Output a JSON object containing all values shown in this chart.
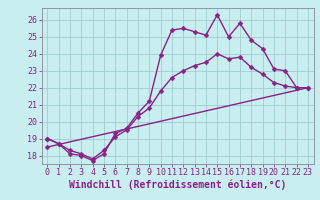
{
  "xlabel": "Windchill (Refroidissement éolien,°C)",
  "background_color": "#c8eef0",
  "grid_color": "#a0ccd0",
  "line_color": "#882288",
  "xlim": [
    -0.5,
    23.5
  ],
  "ylim": [
    17.5,
    26.7
  ],
  "xticks": [
    0,
    1,
    2,
    3,
    4,
    5,
    6,
    7,
    8,
    9,
    10,
    11,
    12,
    13,
    14,
    15,
    16,
    17,
    18,
    19,
    20,
    21,
    22,
    23
  ],
  "yticks": [
    18,
    19,
    20,
    21,
    22,
    23,
    24,
    25,
    26
  ],
  "line1_x": [
    0,
    1,
    2,
    3,
    4,
    5,
    6,
    7,
    8,
    9,
    10,
    11,
    12,
    13,
    14,
    15,
    16,
    17,
    18,
    19,
    20,
    21,
    22
  ],
  "line1_y": [
    19.0,
    18.7,
    18.1,
    18.0,
    17.7,
    18.1,
    19.3,
    19.6,
    20.5,
    21.2,
    23.9,
    25.4,
    25.5,
    25.3,
    25.1,
    26.3,
    25.0,
    25.8,
    24.8,
    24.3,
    23.1,
    23.0,
    22.0
  ],
  "line2_x": [
    0,
    1,
    2,
    3,
    4,
    5,
    6,
    7,
    8,
    9,
    10,
    11,
    12,
    13,
    14,
    15,
    16,
    17,
    18,
    19,
    20,
    21,
    22,
    23
  ],
  "line2_y": [
    19.0,
    18.7,
    18.3,
    18.1,
    17.8,
    18.3,
    19.1,
    19.5,
    20.3,
    20.8,
    21.8,
    22.6,
    23.0,
    23.3,
    23.5,
    24.0,
    23.7,
    23.8,
    23.2,
    22.8,
    22.3,
    22.1,
    22.0,
    22.0
  ],
  "line3_x": [
    0,
    23
  ],
  "line3_y": [
    18.5,
    22.0
  ],
  "marker": "D",
  "markersize": 2.5,
  "linewidth": 1.0,
  "xlabel_fontsize": 7,
  "tick_fontsize": 6
}
